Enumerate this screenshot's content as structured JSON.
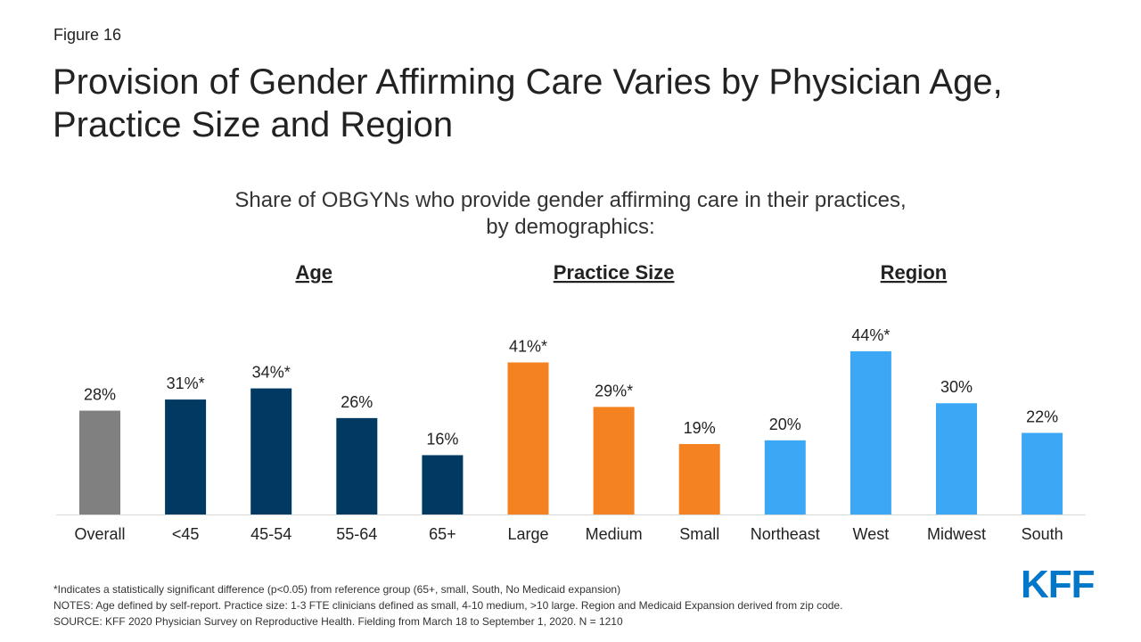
{
  "figure_label": "Figure 16",
  "title": "Provision of Gender Affirming Care Varies by Physician Age, Practice Size and Region",
  "subtitle_line1": "Share of OBGYNs who provide gender affirming care in their practices,",
  "subtitle_line2": "by demographics:",
  "chart_data": {
    "type": "bar",
    "groups": [
      {
        "label": "Age",
        "categories": [
          "<45",
          "45-54",
          "55-64",
          "65+"
        ]
      },
      {
        "label": "Practice Size",
        "categories": [
          "Large",
          "Medium",
          "Small"
        ]
      },
      {
        "label": "Region",
        "categories": [
          "Northeast",
          "West",
          "Midwest",
          "South"
        ]
      }
    ],
    "categories": [
      "Overall",
      "<45",
      "45-54",
      "55-64",
      "65+",
      "Large",
      "Medium",
      "Small",
      "Northeast",
      "West",
      "Midwest",
      "South"
    ],
    "values": [
      28,
      31,
      34,
      26,
      16,
      41,
      29,
      19,
      20,
      44,
      30,
      22
    ],
    "data_labels": [
      "28%",
      "31%*",
      "34%*",
      "26%",
      "16%",
      "41%*",
      "29%*",
      "19%",
      "20%",
      "44%*",
      "30%",
      "22%"
    ],
    "bar_colors": [
      "#808080",
      "#003a63",
      "#003a63",
      "#003a63",
      "#003a63",
      "#f58220",
      "#f58220",
      "#f58220",
      "#3ca8f5",
      "#3ca8f5",
      "#3ca8f5",
      "#3ca8f5"
    ],
    "ylim": [
      0,
      44
    ],
    "grid": false,
    "legend": "none"
  },
  "notes": {
    "significance": "*Indicates a statistically significant difference (p<0.05) from reference group (65+, small, South, No Medicaid expansion)",
    "definitions": "NOTES: Age defined by self-report. Practice size: 1-3 FTE clinicians defined as small, 4-10 medium, >10 large. Region and Medicaid Expansion derived from zip code.",
    "source": "SOURCE: KFF 2020 Physician Survey on Reproductive Health. Fielding from March 18 to September 1, 2020. N = 1210"
  },
  "logo_text": "KFF",
  "colors": {
    "overall": "#808080",
    "age": "#003a63",
    "practice_size": "#f58220",
    "region": "#3ca8f5",
    "logo": "#0077c8"
  }
}
